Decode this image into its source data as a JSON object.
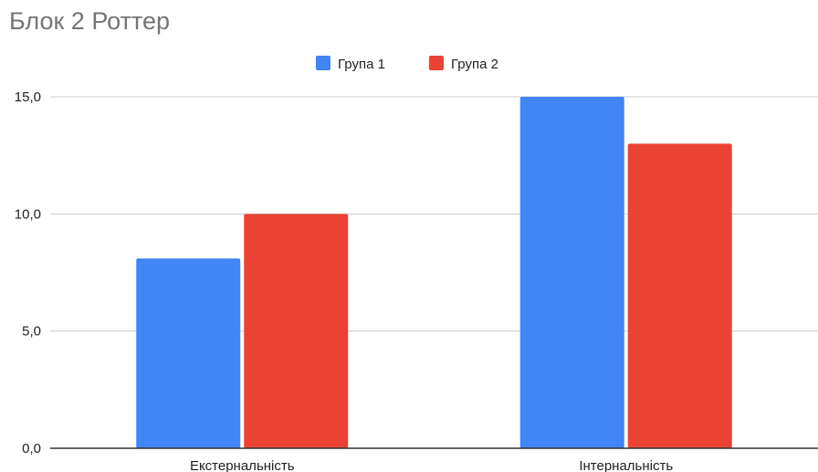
{
  "chart_data": {
    "type": "bar",
    "title": "Блок 2 Роттер",
    "categories": [
      "Екстернальність",
      "Інтернальність"
    ],
    "series": [
      {
        "name": "Група 1",
        "values": [
          8.1,
          15.0
        ],
        "color": "#4285f4"
      },
      {
        "name": "Група 2",
        "values": [
          10.0,
          13.0
        ],
        "color": "#ea4335"
      }
    ],
    "ylim": [
      0,
      15
    ],
    "yticks": [
      "0,0",
      "5,0",
      "10,0",
      "15,0"
    ],
    "ytick_values": [
      0,
      5,
      10,
      15
    ],
    "grid": true,
    "legend_position": "top-center"
  }
}
